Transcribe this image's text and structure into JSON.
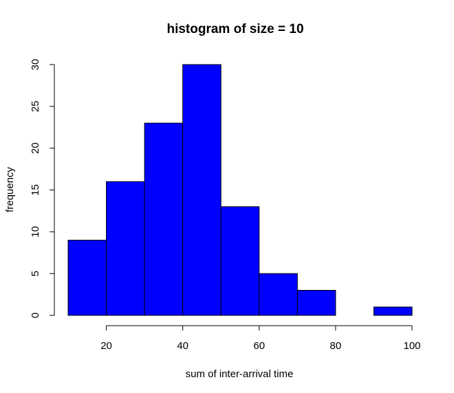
{
  "chart_data": {
    "type": "bar",
    "subtype": "histogram",
    "title": "histogram of size = 10",
    "xlabel": "sum of inter-arrival time",
    "ylabel": "frequency",
    "bins": [
      {
        "start": 10,
        "end": 20,
        "count": 9
      },
      {
        "start": 20,
        "end": 30,
        "count": 16
      },
      {
        "start": 30,
        "end": 40,
        "count": 23
      },
      {
        "start": 40,
        "end": 50,
        "count": 30
      },
      {
        "start": 50,
        "end": 60,
        "count": 13
      },
      {
        "start": 60,
        "end": 70,
        "count": 5
      },
      {
        "start": 70,
        "end": 80,
        "count": 3
      },
      {
        "start": 80,
        "end": 90,
        "count": 0
      },
      {
        "start": 90,
        "end": 100,
        "count": 1
      }
    ],
    "xlim": [
      10,
      100
    ],
    "ylim": [
      0,
      30
    ],
    "xticks": [
      20,
      40,
      60,
      80,
      100
    ],
    "yticks": [
      0,
      5,
      10,
      15,
      20,
      25,
      30
    ],
    "bar_color": "#0000ff",
    "grid": false,
    "legend": "none"
  }
}
